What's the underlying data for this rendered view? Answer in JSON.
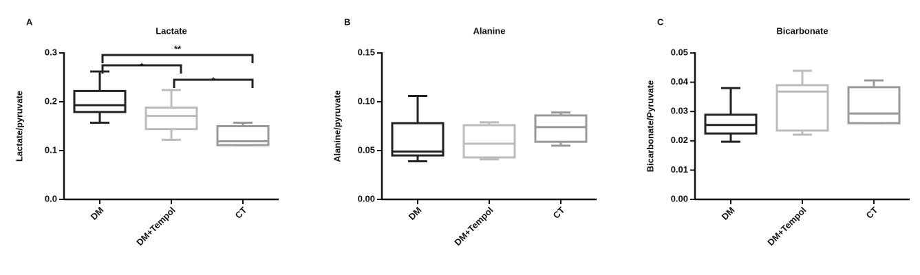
{
  "chart_data": [
    {
      "type": "box",
      "panel": "A",
      "title": "Lactate",
      "y_label": "Lactate/pyruvate",
      "categories": [
        "DM",
        "DM+Tempol",
        "CT"
      ],
      "colors": [
        "#222222",
        "#bbbbbb",
        "#999999"
      ],
      "boxes": [
        {
          "min": 0.157,
          "q1": 0.179,
          "median": 0.193,
          "q3": 0.222,
          "max": 0.262
        },
        {
          "min": 0.122,
          "q1": 0.144,
          "median": 0.171,
          "q3": 0.188,
          "max": 0.224
        },
        {
          "min": 0.111,
          "q1": 0.111,
          "median": 0.119,
          "q3": 0.15,
          "max": 0.157
        }
      ],
      "ylim": [
        0,
        0.3
      ],
      "yticks": [
        {
          "value": 0,
          "label": "0.0"
        },
        {
          "value": 0.1,
          "label": "0.1"
        },
        {
          "value": 0.2,
          "label": "0.2"
        },
        {
          "value": 0.3,
          "label": "0.3"
        }
      ],
      "annotations": [
        {
          "text": "**",
          "between": [
            "DM",
            "CT"
          ]
        },
        {
          "text": "*",
          "between": [
            "DM",
            "DM+Tempol"
          ]
        },
        {
          "text": "*",
          "between": [
            "DM+Tempol",
            "CT"
          ]
        }
      ]
    },
    {
      "type": "box",
      "panel": "B",
      "title": "Alanine",
      "y_label": "Alanine/pyruvate",
      "categories": [
        "DM",
        "DM+Tempol",
        "CT"
      ],
      "colors": [
        "#222222",
        "#bbbbbb",
        "#999999"
      ],
      "boxes": [
        {
          "min": 0.039,
          "q1": 0.045,
          "median": 0.049,
          "q3": 0.078,
          "max": 0.106
        },
        {
          "min": 0.041,
          "q1": 0.043,
          "median": 0.057,
          "q3": 0.076,
          "max": 0.079
        },
        {
          "min": 0.055,
          "q1": 0.059,
          "median": 0.074,
          "q3": 0.086,
          "max": 0.089
        }
      ],
      "ylim": [
        0,
        0.15
      ],
      "yticks": [
        {
          "value": 0,
          "label": "0.00"
        },
        {
          "value": 0.05,
          "label": "0.05"
        },
        {
          "value": 0.1,
          "label": "0.10"
        },
        {
          "value": 0.15,
          "label": "0.15"
        }
      ]
    },
    {
      "type": "box",
      "panel": "C",
      "title": "Bicarbonate",
      "y_label": "Bicarbonate/Pyruvate",
      "categories": [
        "DM",
        "DM+Tempol",
        "CT"
      ],
      "colors": [
        "#222222",
        "#bbbbbb",
        "#999999"
      ],
      "boxes": [
        {
          "min": 0.0197,
          "q1": 0.0225,
          "median": 0.0254,
          "q3": 0.0289,
          "max": 0.038
        },
        {
          "min": 0.0221,
          "q1": 0.0235,
          "median": 0.0368,
          "q3": 0.039,
          "max": 0.0439
        },
        {
          "min": 0.026,
          "q1": 0.026,
          "median": 0.0293,
          "q3": 0.0383,
          "max": 0.0406
        }
      ],
      "ylim": [
        0,
        0.05
      ],
      "yticks": [
        {
          "value": 0,
          "label": "0.00"
        },
        {
          "value": 0.01,
          "label": "0.01"
        },
        {
          "value": 0.02,
          "label": "0.02"
        },
        {
          "value": 0.03,
          "label": "0.03"
        },
        {
          "value": 0.04,
          "label": "0.04"
        },
        {
          "value": 0.05,
          "label": "0.05"
        }
      ]
    }
  ]
}
